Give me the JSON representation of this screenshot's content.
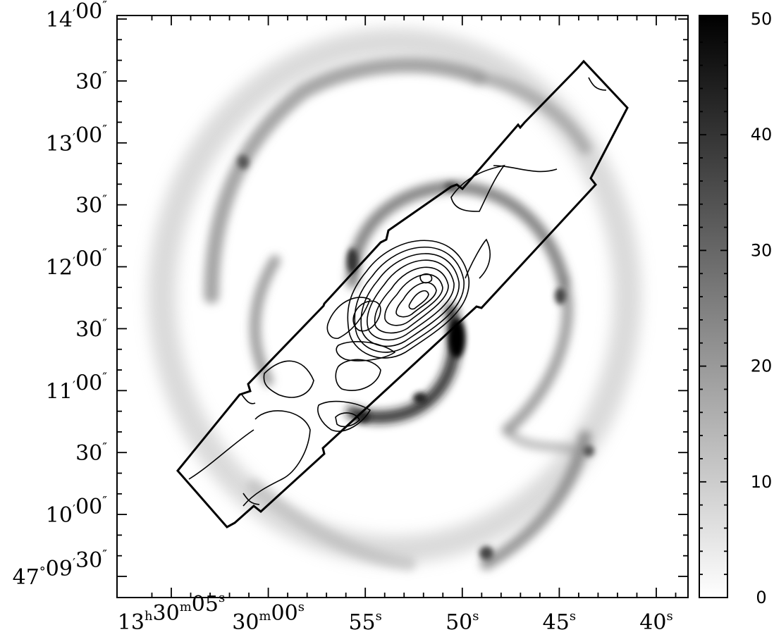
{
  "figure": {
    "dec_labels": [
      {
        "deg": "",
        "arcmin": "14",
        "arcsec": "00",
        "val": 14.0
      },
      {
        "deg": "",
        "arcmin": "",
        "arcsec": "30",
        "val": 13.5
      },
      {
        "deg": "",
        "arcmin": "13",
        "arcsec": "00",
        "val": 13.0
      },
      {
        "deg": "",
        "arcmin": "",
        "arcsec": "30",
        "val": 12.5
      },
      {
        "deg": "",
        "arcmin": "12",
        "arcsec": "00",
        "val": 12.0
      },
      {
        "deg": "",
        "arcmin": "",
        "arcsec": "30",
        "val": 11.5
      },
      {
        "deg": "",
        "arcmin": "11",
        "arcsec": "00",
        "val": 11.0
      },
      {
        "deg": "",
        "arcmin": "",
        "arcsec": "30",
        "val": 10.5
      },
      {
        "deg": "",
        "arcmin": "10",
        "arcsec": "00",
        "val": 10.0
      },
      {
        "deg": "47",
        "arcmin": "09",
        "arcsec": "30",
        "val": 9.5
      }
    ],
    "ra_labels": [
      {
        "h": "13",
        "m": "30",
        "s": "05",
        "val": 5
      },
      {
        "h": "",
        "m": "30",
        "s": "00",
        "val": 0
      },
      {
        "h": "",
        "m": "",
        "s": "55",
        "val": -5
      },
      {
        "h": "",
        "m": "",
        "s": "50",
        "val": -10
      },
      {
        "h": "",
        "m": "",
        "s": "45",
        "val": -15
      },
      {
        "h": "",
        "m": "",
        "s": "40",
        "val": -20
      }
    ],
    "colorbar": {
      "min": 0,
      "max": 50,
      "ticks": [
        "0",
        "10",
        "20",
        "30",
        "40",
        "50"
      ]
    },
    "colors": {
      "background": "#ffffff",
      "ink": "#000000"
    }
  }
}
